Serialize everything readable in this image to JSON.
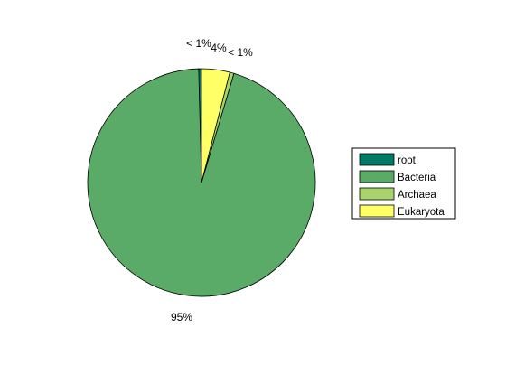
{
  "chart_data": {
    "type": "pie",
    "slices": [
      {
        "name": "root",
        "value": 0.4,
        "label": "< 1%",
        "color": "#007a66"
      },
      {
        "name": "Bacteria",
        "value": 95.0,
        "label": "95%",
        "color": "#5aab67"
      },
      {
        "name": "Archaea",
        "value": 0.6,
        "label": "< 1%",
        "color": "#a6d46a"
      },
      {
        "name": "Eukaryota",
        "value": 4.0,
        "label": "4%",
        "color": "#ffff66"
      }
    ],
    "start": "top",
    "direction": "counterclockwise",
    "legend_placement": "right"
  }
}
